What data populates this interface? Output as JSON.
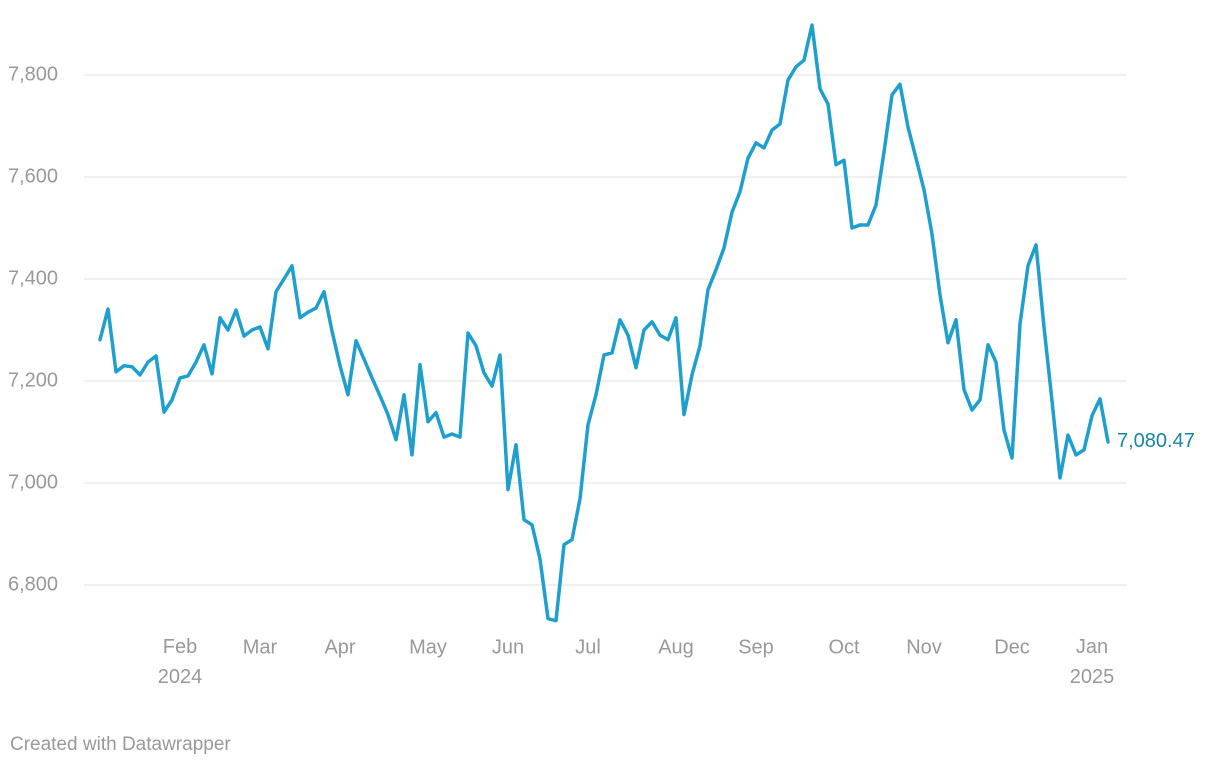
{
  "chart_data": {
    "type": "line",
    "categories": [
      null,
      null,
      null,
      null,
      null,
      null,
      null,
      null,
      null,
      null,
      "Feb 2024",
      null,
      null,
      null,
      null,
      null,
      null,
      null,
      null,
      null,
      "Mar",
      null,
      null,
      null,
      null,
      null,
      null,
      null,
      null,
      null,
      "Apr",
      null,
      null,
      null,
      null,
      null,
      null,
      null,
      null,
      null,
      null,
      "May",
      null,
      null,
      null,
      null,
      null,
      null,
      null,
      null,
      null,
      "Jun",
      null,
      null,
      null,
      null,
      null,
      null,
      null,
      null,
      null,
      "Jul",
      null,
      null,
      null,
      null,
      null,
      null,
      null,
      null,
      null,
      null,
      "Aug",
      null,
      null,
      null,
      null,
      null,
      null,
      null,
      null,
      null,
      "Sep",
      null,
      null,
      null,
      null,
      null,
      null,
      null,
      null,
      null,
      null,
      "Oct",
      null,
      null,
      null,
      null,
      null,
      null,
      null,
      null,
      null,
      "Nov",
      null,
      null,
      null,
      null,
      null,
      null,
      null,
      null,
      null,
      null,
      "Dec",
      null,
      null,
      null,
      null,
      null,
      null,
      null,
      null,
      null,
      "Jan 2025",
      null,
      null
    ],
    "values": [
      7281,
      7341,
      7218,
      7230,
      7228,
      7212,
      7237,
      7249,
      7139,
      7163,
      7206,
      7210,
      7237,
      7271,
      7214,
      7324,
      7300,
      7339,
      7288,
      7300,
      7306,
      7263,
      7375,
      7400,
      7426,
      7324,
      7335,
      7343,
      7375,
      7298,
      7230,
      7173,
      7279,
      7243,
      7206,
      7171,
      7134,
      7085,
      7173,
      7055,
      7232,
      7120,
      7138,
      7090,
      7096,
      7090,
      7294,
      7269,
      7216,
      7190,
      7251,
      6987,
      7075,
      6928,
      6918,
      6851,
      6734,
      6730,
      6879,
      6889,
      6969,
      7114,
      7173,
      7251,
      7255,
      7320,
      7290,
      7226,
      7300,
      7316,
      7290,
      7281,
      7324,
      7134,
      7212,
      7269,
      7379,
      7418,
      7461,
      7531,
      7571,
      7637,
      7667,
      7657,
      7692,
      7704,
      7790,
      7816,
      7829,
      7898,
      7773,
      7743,
      7624,
      7633,
      7500,
      7506,
      7506,
      7545,
      7649,
      7761,
      7782,
      7698,
      7637,
      7575,
      7488,
      7369,
      7275,
      7320,
      7183,
      7143,
      7163,
      7271,
      7237,
      7104,
      7049,
      7312,
      7426,
      7467,
      7306,
      7161,
      7010,
      7094,
      7055,
      7065,
      7132,
      7165,
      7080.47
    ],
    "value_labels": [
      null,
      null,
      null,
      null,
      null,
      null,
      null,
      null,
      null,
      null,
      null,
      null,
      null,
      null,
      null,
      null,
      null,
      null,
      null,
      null,
      null,
      null,
      null,
      null,
      null,
      null,
      null,
      null,
      null,
      null,
      null,
      null,
      null,
      null,
      null,
      null,
      null,
      null,
      null,
      null,
      null,
      null,
      null,
      null,
      null,
      null,
      null,
      null,
      null,
      null,
      null,
      null,
      null,
      null,
      null,
      null,
      null,
      null,
      null,
      null,
      null,
      null,
      null,
      null,
      null,
      null,
      null,
      null,
      null,
      null,
      null,
      null,
      null,
      null,
      null,
      null,
      null,
      null,
      null,
      null,
      null,
      null,
      null,
      null,
      null,
      null,
      null,
      null,
      null,
      null,
      null,
      null,
      null,
      null,
      null,
      null,
      null,
      null,
      null,
      null,
      null,
      null,
      null,
      null,
      null,
      null,
      null,
      null,
      null,
      null,
      null,
      null,
      null,
      null,
      null,
      null,
      null,
      null,
      null,
      null,
      null,
      null,
      null,
      null,
      null,
      null,
      "7,080.47"
    ],
    "color": "#1f9fcd",
    "label_color": "#1785a8",
    "ylim": [
      6700,
      7900
    ],
    "yticks": [
      {
        "value": 6800,
        "label": "6,800"
      },
      {
        "value": 7000,
        "label": "7,000"
      },
      {
        "value": 7200,
        "label": "7,200"
      },
      {
        "value": 7400,
        "label": "7,400"
      },
      {
        "value": 7600,
        "label": "7,600"
      },
      {
        "value": 7800,
        "label": "7,800"
      }
    ],
    "grid": true,
    "footer": "Created with Datawrapper"
  }
}
